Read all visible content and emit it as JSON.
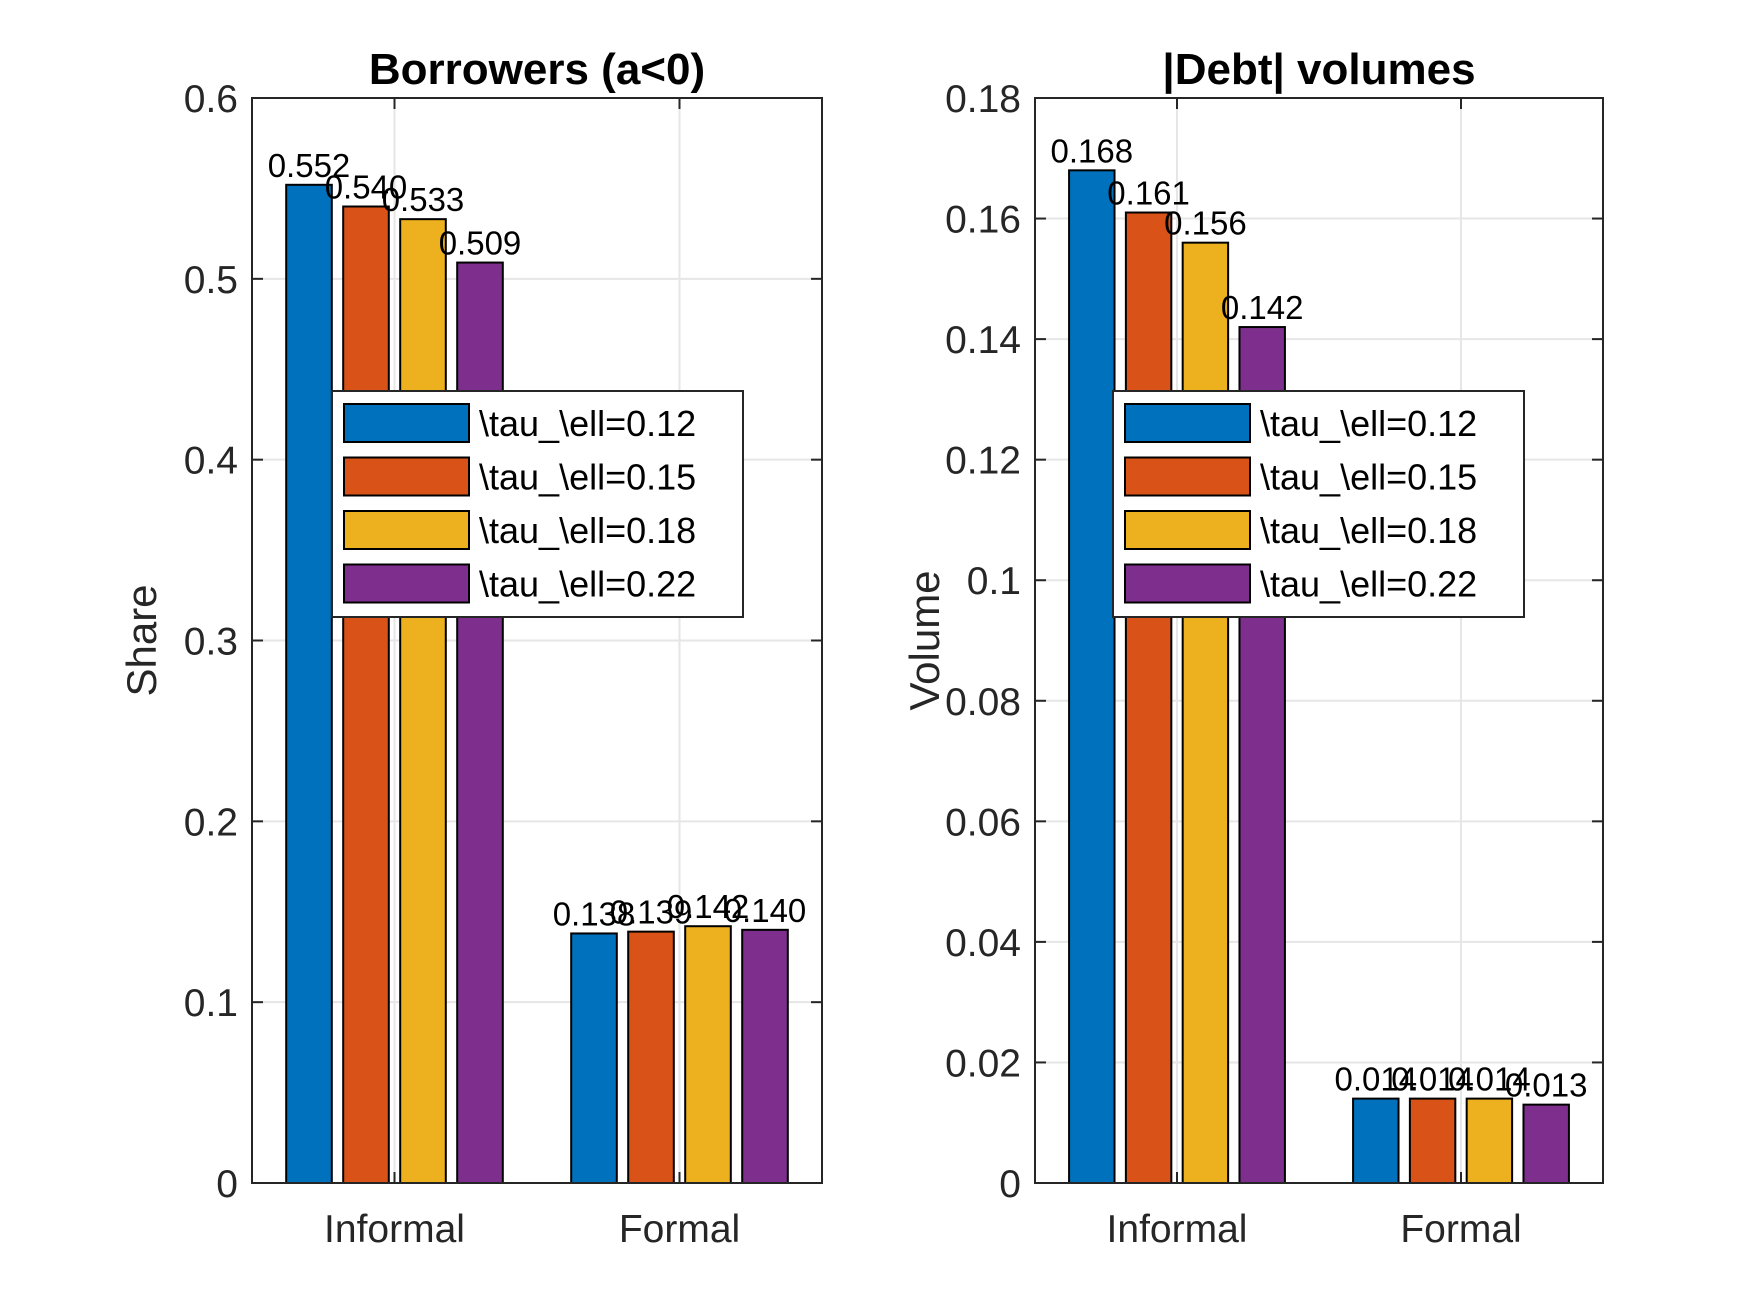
{
  "chart_data": [
    {
      "type": "bar",
      "title": "Borrowers (a<0)",
      "xlabel": "",
      "ylabel": "Share",
      "categories": [
        "Informal",
        "Formal"
      ],
      "ylim": [
        0,
        0.6
      ],
      "yticks": [
        0,
        0.1,
        0.2,
        0.3,
        0.4,
        0.5,
        0.6
      ],
      "ytick_labels": [
        "0",
        "0.1",
        "0.2",
        "0.3",
        "0.4",
        "0.5",
        "0.6"
      ],
      "grid": true,
      "legend_position": "middle-right",
      "series": [
        {
          "name": "\\tau_\\ell=0.12",
          "values": [
            0.552,
            0.138
          ],
          "labels": [
            "0.552",
            "0.138"
          ]
        },
        {
          "name": "\\tau_\\ell=0.15",
          "values": [
            0.54,
            0.139
          ],
          "labels": [
            "0.540",
            "0.139"
          ]
        },
        {
          "name": "\\tau_\\ell=0.18",
          "values": [
            0.533,
            0.142
          ],
          "labels": [
            "0.533",
            "0.142"
          ]
        },
        {
          "name": "\\tau_\\ell=0.22",
          "values": [
            0.509,
            0.14
          ],
          "labels": [
            "0.509",
            "0.140"
          ]
        }
      ]
    },
    {
      "type": "bar",
      "title": "|Debt| volumes",
      "xlabel": "",
      "ylabel": "Volume",
      "categories": [
        "Informal",
        "Formal"
      ],
      "ylim": [
        0,
        0.18
      ],
      "yticks": [
        0,
        0.02,
        0.04,
        0.06,
        0.08,
        0.1,
        0.12,
        0.14,
        0.16,
        0.18
      ],
      "ytick_labels": [
        "0",
        "0.02",
        "0.04",
        "0.06",
        "0.08",
        "0.1",
        "0.12",
        "0.14",
        "0.16",
        "0.18"
      ],
      "grid": true,
      "legend_position": "middle-right",
      "series": [
        {
          "name": "\\tau_\\ell=0.12",
          "values": [
            0.168,
            0.014
          ],
          "labels": [
            "0.168",
            "0.014"
          ]
        },
        {
          "name": "\\tau_\\ell=0.15",
          "values": [
            0.161,
            0.014
          ],
          "labels": [
            "0.161",
            "0.014"
          ]
        },
        {
          "name": "\\tau_\\ell=0.18",
          "values": [
            0.156,
            0.014
          ],
          "labels": [
            "0.156",
            "0.014"
          ]
        },
        {
          "name": "\\tau_\\ell=0.22",
          "values": [
            0.142,
            0.013
          ],
          "labels": [
            "0.142",
            "0.013"
          ]
        }
      ]
    }
  ],
  "colors": [
    "#0072BD",
    "#D95319",
    "#EDB120",
    "#7E2F8E"
  ]
}
